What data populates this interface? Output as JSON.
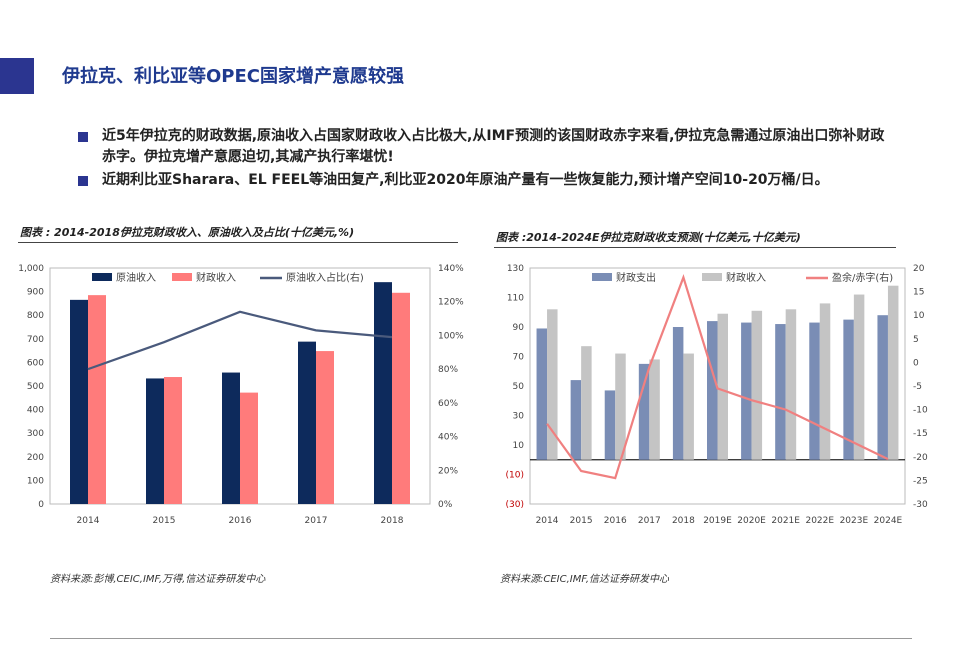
{
  "page": {
    "title": "伊拉克、利比亚等OPEC国家增产意愿较强",
    "bullets": [
      "近5年伊拉克的财政数据,原油收入占国家财政收入占比极大,从IMF预测的该国财政赤字来看,伊拉克急需通过原油出口弥补财政赤字。伊拉克增产意愿迫切,其减产执行率堪忧!",
      "近期利比亚Sharara、EL FEEL等油田复产,利比亚2020年原油产量有一些恢复能力,预计增产空间10-20万桶/日。"
    ],
    "accent_color": "#2b3590",
    "title_color": "#1f3a8f"
  },
  "charts": [
    {
      "caption": "图表 : 2014-2018伊拉克财政收入、原油收入及占比(十亿美元,%)",
      "source": "资料来源:彭博,CEIC,IMF,万得,信达证券研发中心"
    },
    {
      "caption": "图表 :2014-2024E伊拉克财政收支预测(十亿美元,十亿美元)",
      "source": "资料来源:CEIC,IMF,信达证券研发中心"
    }
  ],
  "chart_data": [
    {
      "type": "bar",
      "categories": [
        "2014",
        "2015",
        "2016",
        "2017",
        "2018"
      ],
      "series": [
        {
          "name": "原油收入",
          "values": [
            865,
            532,
            557,
            688,
            940
          ],
          "color": "#0d2a5c",
          "axis": "left"
        },
        {
          "name": "财政收入",
          "values": [
            885,
            538,
            472,
            648,
            895
          ],
          "color": "#ff7b7b",
          "axis": "left"
        },
        {
          "name": "原油收入占比(右)",
          "type": "line",
          "values": [
            80,
            96,
            114,
            103,
            99
          ],
          "color": "#4a5a7c",
          "axis": "right"
        }
      ],
      "ylim": [
        0,
        1000
      ],
      "yticks": [
        "0",
        "100",
        "200",
        "300",
        "400",
        "500",
        "600",
        "700",
        "800",
        "900",
        "1,000"
      ],
      "y2lim": [
        0,
        140
      ],
      "y2ticks": [
        "0%",
        "20%",
        "40%",
        "60%",
        "80%",
        "100%",
        "120%",
        "140%"
      ],
      "legend": "top"
    },
    {
      "type": "bar",
      "categories": [
        "2014",
        "2015",
        "2016",
        "2017",
        "2018",
        "2019E",
        "2020E",
        "2021E",
        "2022E",
        "2023E",
        "2024E"
      ],
      "series": [
        {
          "name": "财政支出",
          "values": [
            89,
            54,
            47,
            65,
            90,
            94,
            93,
            92,
            93,
            95,
            98
          ],
          "color": "#7a8db5",
          "axis": "left"
        },
        {
          "name": "财政收入",
          "values": [
            102,
            77,
            72,
            68,
            72,
            99,
            101,
            102,
            106,
            112,
            118
          ],
          "color": "#c4c4c4",
          "axis": "left"
        },
        {
          "name": "盈余/赤字(右)",
          "type": "line",
          "values": [
            -13,
            -23,
            -24.5,
            -1,
            18,
            -5.5,
            -8,
            -10,
            -13.5,
            -17,
            -20.5
          ],
          "color": "#f08080",
          "axis": "right"
        }
      ],
      "ylim": [
        -30,
        130
      ],
      "yticks": [
        "(30)",
        "(10)",
        "10",
        "30",
        "50",
        "70",
        "90",
        "110",
        "130"
      ],
      "y2lim": [
        -30,
        20
      ],
      "y2ticks": [
        "-30",
        "-25",
        "-20",
        "-15",
        "-10",
        "-5",
        "0",
        "5",
        "10",
        "15",
        "20"
      ],
      "legend": "top"
    }
  ]
}
